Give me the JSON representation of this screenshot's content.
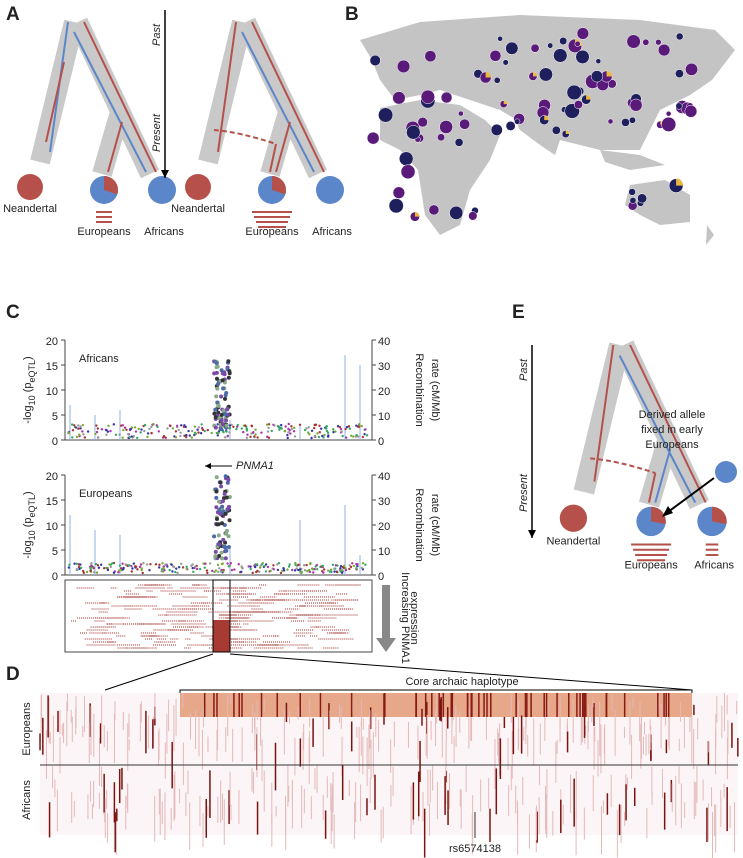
{
  "panels": {
    "A": {
      "letter": "A",
      "past": "Past",
      "present": "Present",
      "left_tree": {
        "neandertal": "Neandertal",
        "europeans": "Europeans",
        "africans": "Africans"
      },
      "right_tree": {
        "neandertal": "Neandertal",
        "europeans": "Europeans",
        "africans": "Africans"
      }
    },
    "B": {
      "letter": "B"
    },
    "C": {
      "letter": "C",
      "plots": [
        {
          "population": "Africans",
          "ylim": [
            0,
            20
          ],
          "yticks": [
            0,
            5,
            10,
            15,
            20
          ],
          "y2lim": [
            0,
            40
          ],
          "y2ticks": [
            0,
            10,
            20,
            30,
            40
          ],
          "ylabel": {
            "pre": "-log",
            "sub1": "10",
            "mid": " (p",
            "sub2": "eQTL",
            "post": ")"
          },
          "y2label": [
            "Recombination",
            "rate (cM/Mb)"
          ]
        },
        {
          "population": "Europeans",
          "gene": "PNMA1",
          "ylim": [
            0,
            20
          ],
          "yticks": [
            0,
            5,
            10,
            15,
            20
          ],
          "y2lim": [
            0,
            40
          ],
          "y2ticks": [
            0,
            10,
            20,
            30,
            40
          ],
          "ylabel": {
            "pre": "-log",
            "sub1": "10",
            "mid": " (p",
            "sub2": "eQTL",
            "post": ")"
          },
          "y2label": [
            "Recombination",
            "rate (cM/Mb)"
          ]
        }
      ],
      "expression_label": [
        "Increasing PNMA1",
        "expression"
      ]
    },
    "D": {
      "letter": "D",
      "haplotype": "Core archaic haplotype",
      "europeans": "Europeans",
      "africans": "Africans",
      "snp": "rs6574138"
    },
    "E": {
      "letter": "E",
      "past": "Past",
      "present": "Present",
      "annotation": [
        "Derived allele",
        "fixed in early",
        "Europeans"
      ],
      "neandertal": "Neandertal",
      "europeans": "Europeans",
      "africans": "Africans"
    }
  }
}
